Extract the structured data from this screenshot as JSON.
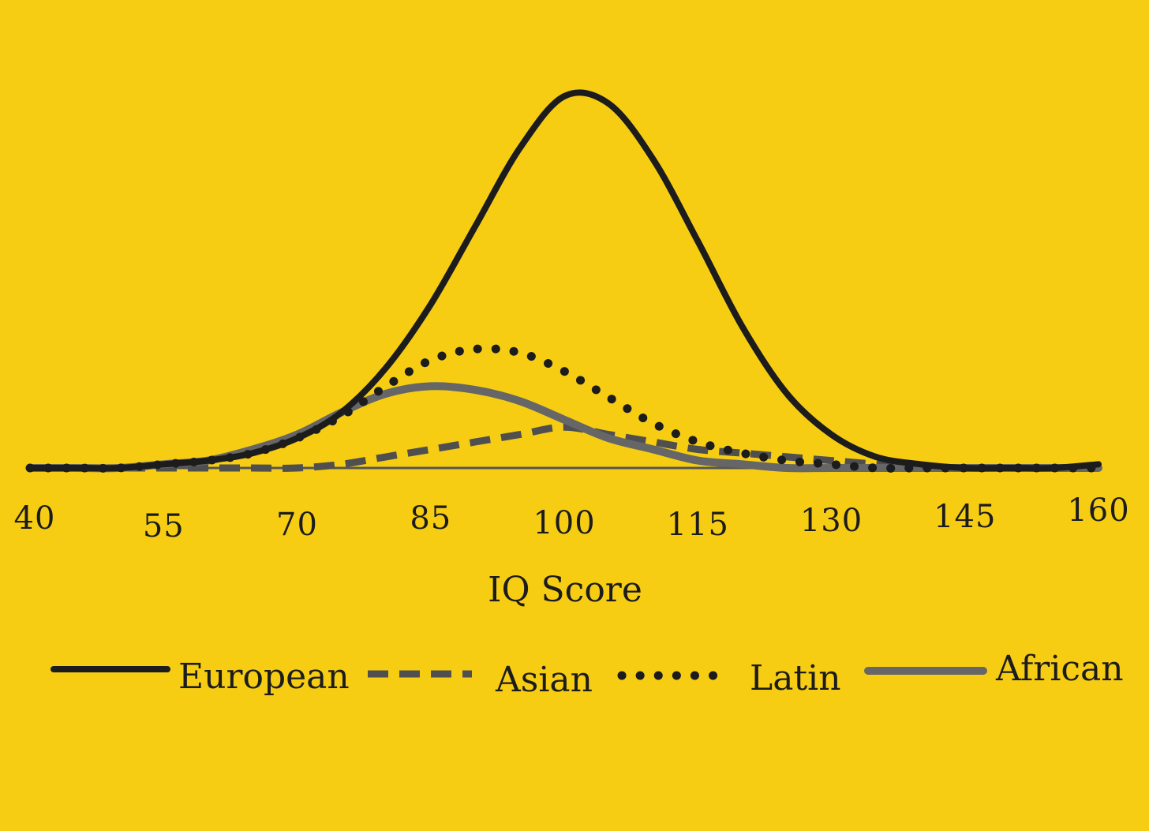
{
  "chart_data": {
    "type": "line",
    "title": "",
    "xlabel": "IQ Score",
    "ylabel": "",
    "xlim": [
      40,
      160
    ],
    "ylim": [
      0,
      1
    ],
    "grid": false,
    "legend_position": "bottom",
    "x_ticks": [
      "40",
      "55",
      "70",
      "85",
      "100",
      "115",
      "130",
      "145",
      "160"
    ],
    "x": [
      40,
      45,
      50,
      55,
      60,
      65,
      70,
      75,
      80,
      85,
      90,
      95,
      100,
      105,
      110,
      115,
      120,
      125,
      130,
      135,
      140,
      145,
      150,
      155,
      160
    ],
    "series": [
      {
        "name": "European",
        "style": "solid",
        "color": "#1c1c1c",
        "values": [
          0.0,
          0.0,
          0.0,
          0.01,
          0.02,
          0.04,
          0.08,
          0.15,
          0.27,
          0.44,
          0.65,
          0.86,
          1.0,
          0.98,
          0.83,
          0.61,
          0.38,
          0.2,
          0.09,
          0.03,
          0.01,
          0.0,
          0.0,
          0.0,
          0.01
        ]
      },
      {
        "name": "Asian",
        "style": "dashed",
        "color": "#4f4f4f",
        "values": [
          0.0,
          0.0,
          0.0,
          0.0,
          0.0,
          0.0,
          0.0,
          0.01,
          0.03,
          0.05,
          0.07,
          0.09,
          0.11,
          0.09,
          0.07,
          0.05,
          0.04,
          0.03,
          0.02,
          0.01,
          0.0,
          0.0,
          0.0,
          0.0,
          0.0
        ]
      },
      {
        "name": "Latin",
        "style": "dotted",
        "color": "#1c1c1c",
        "values": [
          0.0,
          0.0,
          0.0,
          0.01,
          0.02,
          0.04,
          0.08,
          0.14,
          0.22,
          0.29,
          0.32,
          0.31,
          0.26,
          0.19,
          0.12,
          0.07,
          0.04,
          0.02,
          0.01,
          0.0,
          0.0,
          0.0,
          0.0,
          0.0,
          0.0
        ]
      },
      {
        "name": "African",
        "style": "solid-gray",
        "color": "#666666",
        "values": [
          0.0,
          0.0,
          0.0,
          0.01,
          0.02,
          0.05,
          0.09,
          0.15,
          0.2,
          0.22,
          0.21,
          0.18,
          0.13,
          0.08,
          0.05,
          0.02,
          0.01,
          0.0,
          0.0,
          0.0,
          0.0,
          0.0,
          0.0,
          0.0,
          0.0
        ]
      }
    ]
  },
  "colors": {
    "background": "#f7cd14",
    "ink": "#1c1c1c",
    "gray": "#666666"
  }
}
